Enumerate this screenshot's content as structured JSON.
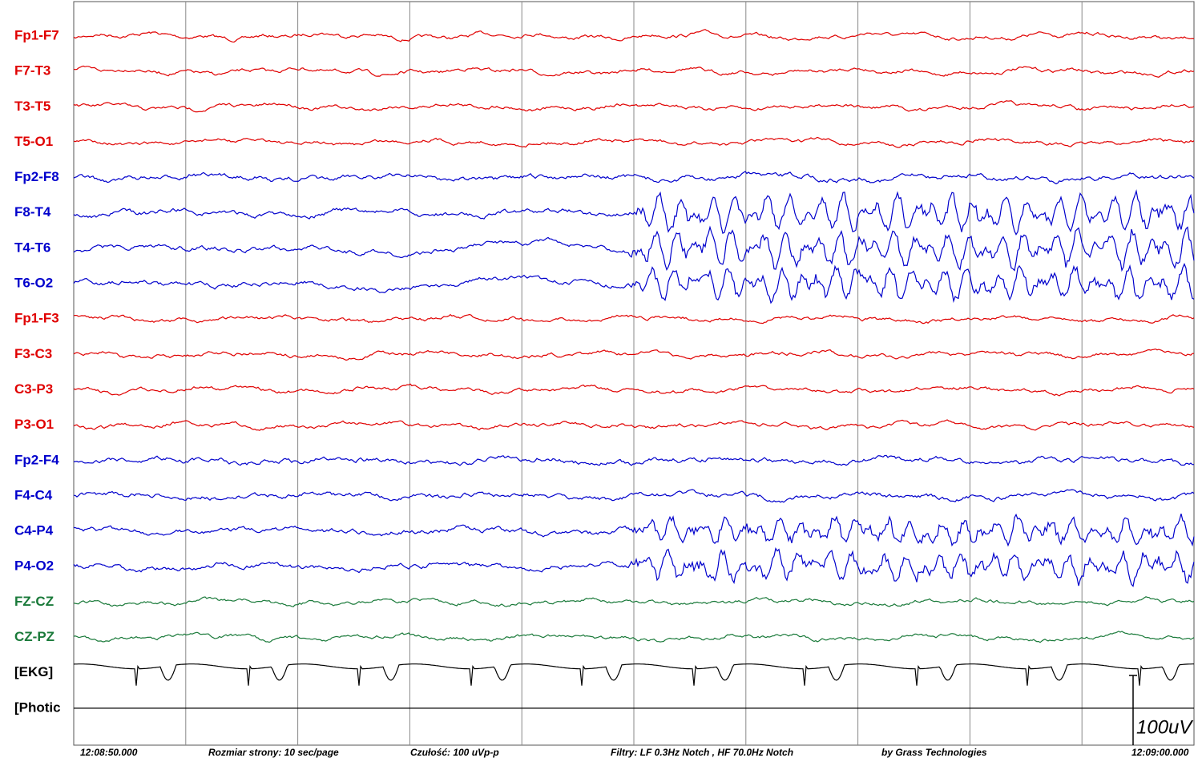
{
  "channels": [
    {
      "label": "Fp1-F7",
      "color": "#e00000"
    },
    {
      "label": "F7-T3",
      "color": "#e00000"
    },
    {
      "label": "T3-T5",
      "color": "#e00000"
    },
    {
      "label": "T5-O1",
      "color": "#e00000"
    },
    {
      "label": "Fp2-F8",
      "color": "#0000cc"
    },
    {
      "label": "F8-T4",
      "color": "#0000cc"
    },
    {
      "label": "T4-T6",
      "color": "#0000cc"
    },
    {
      "label": "T6-O2",
      "color": "#0000cc"
    },
    {
      "label": "Fp1-F3",
      "color": "#e00000"
    },
    {
      "label": "F3-C3",
      "color": "#e00000"
    },
    {
      "label": "C3-P3",
      "color": "#e00000"
    },
    {
      "label": "P3-O1",
      "color": "#e00000"
    },
    {
      "label": "Fp2-F4",
      "color": "#0000cc"
    },
    {
      "label": "F4-C4",
      "color": "#0000cc"
    },
    {
      "label": "C4-P4",
      "color": "#0000cc"
    },
    {
      "label": "P4-O2",
      "color": "#0000cc"
    },
    {
      "label": "FZ-CZ",
      "color": "#1a7a3a"
    },
    {
      "label": "CZ-PZ",
      "color": "#1a7a3a"
    },
    {
      "label": "[EKG]",
      "color": "#000000"
    },
    {
      "label": "[Photic",
      "color": "#000000"
    }
  ],
  "footer": {
    "start_time": "12:08:50.000",
    "page_size": "Rozmiar strony: 10 sec/page",
    "sensitivity": "Czułość:  100 uVp-p",
    "filters": "Filtry: LF  0.3Hz Notch , HF 70.0Hz Notch",
    "vendor": "by Grass Technologies",
    "end_time": "12:09:00.000"
  },
  "scale_label": "100uV"
}
